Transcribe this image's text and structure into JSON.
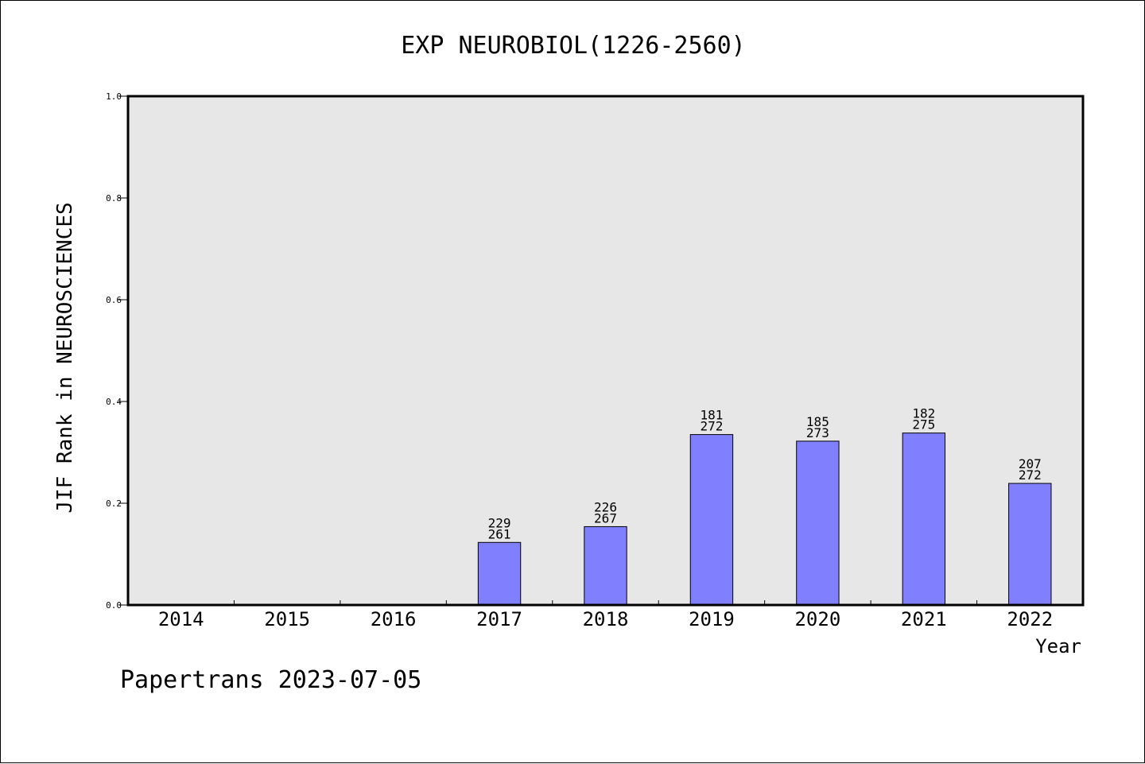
{
  "chart_data": {
    "type": "bar",
    "title": "EXP NEUROBIOL(1226-2560)",
    "xlabel": "Year",
    "ylabel": "JIF Rank in NEUROSCIENCES",
    "ylim": [
      0,
      1.0
    ],
    "yticks": [
      "0.0",
      "0.2",
      "0.4",
      "0.6",
      "0.8",
      "1.0"
    ],
    "categories": [
      "2014",
      "2015",
      "2016",
      "2017",
      "2018",
      "2019",
      "2020",
      "2021",
      "2022"
    ],
    "values": [
      null,
      null,
      null,
      0.123,
      0.154,
      0.335,
      0.322,
      0.338,
      0.239
    ],
    "rank_labels": [
      null,
      null,
      null,
      {
        "rank": "229",
        "total": "261"
      },
      {
        "rank": "226",
        "total": "267"
      },
      {
        "rank": "181",
        "total": "272"
      },
      {
        "rank": "185",
        "total": "273"
      },
      {
        "rank": "182",
        "total": "275"
      },
      {
        "rank": "207",
        "total": "272"
      }
    ],
    "grid": false,
    "legend": "none",
    "colors": {
      "bar": "#8080ff",
      "plot_background": "#e7e7e7",
      "axis": "#000000"
    }
  },
  "footer": {
    "watermark": "Papertrans 2023-07-05"
  }
}
